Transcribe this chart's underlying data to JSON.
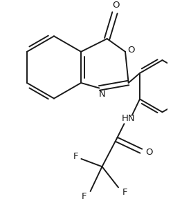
{
  "bg_color": "#ffffff",
  "line_color": "#1a1a1a",
  "line_width": 1.4,
  "figsize": [
    2.5,
    2.91
  ],
  "dpi": 100,
  "xlim": [
    0,
    250
  ],
  "ylim": [
    0,
    291
  ]
}
